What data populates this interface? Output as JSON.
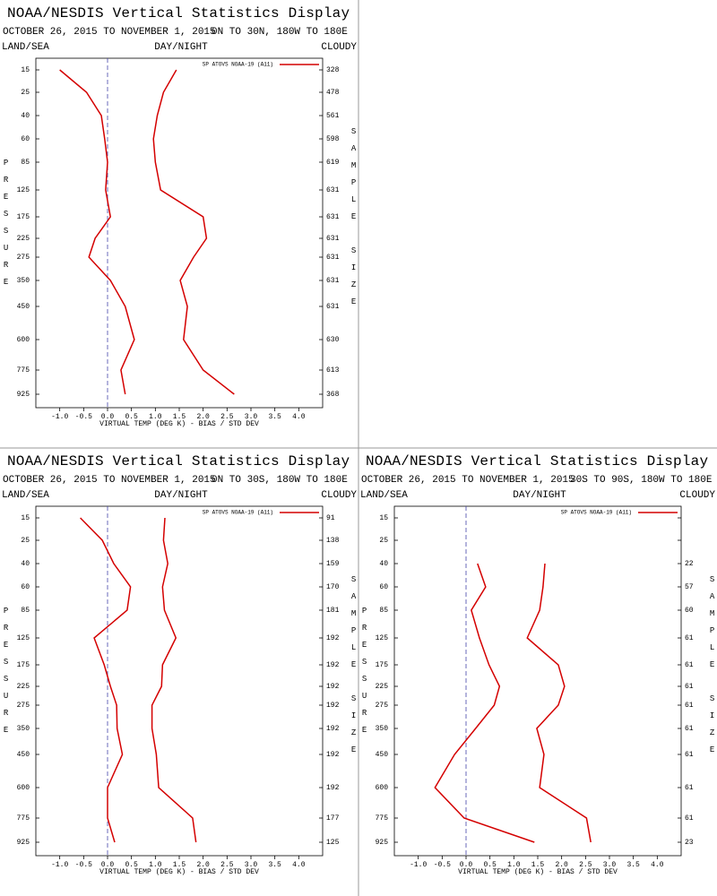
{
  "chart_data": [
    {
      "type": "line",
      "title": "NOAA/NESDIS Vertical Statistics Display",
      "subtitle": "OCTOBER 26, 2015 TO NOVEMBER 1, 2015",
      "region": "0N TO 30N, 180W TO 180E",
      "land_sea": "LAND/SEA",
      "day_night": "DAY/NIGHT",
      "cloudy": "CLOUDY",
      "x_label": "VIRTUAL TEMP (DEG K) - BIAS / STD DEV",
      "y_label": "PRESSURE",
      "y2_label": "SAMPLE SIZE",
      "levels": [
        15,
        25,
        40,
        60,
        85,
        125,
        175,
        225,
        275,
        350,
        450,
        600,
        775,
        925
      ],
      "sample_size": [
        328,
        478,
        561,
        598,
        619,
        631,
        631,
        631,
        631,
        631,
        631,
        630,
        613,
        368
      ],
      "xlim": [
        -1.5,
        4.5
      ],
      "xticks": [
        {
          "value": -1.0,
          "label": "-1.0"
        },
        -0.5,
        {
          "value": 0.0,
          "label": "0.0"
        },
        0.5,
        {
          "value": 1.0,
          "label": "1.0"
        },
        1.5,
        {
          "value": 2.0,
          "label": "2.0"
        },
        2.5,
        {
          "value": 3.0,
          "label": "3.0"
        },
        3.5,
        {
          "value": 4.0,
          "label": "4.0"
        }
      ],
      "series": [
        {
          "name": "SP ATOVS NOAA-19 (A11)",
          "color": "#d40000",
          "values": [
            -1.0,
            -0.44,
            -0.13,
            -0.06,
            0.0,
            -0.04,
            0.06,
            -0.26,
            -0.39,
            0.06,
            0.37,
            0.56,
            0.28,
            0.37
          ],
          "std_dev": [
            1.44,
            1.17,
            1.04,
            0.96,
            1.0,
            1.11,
            2.0,
            2.07,
            1.8,
            1.52,
            1.67,
            1.59,
            2.0,
            2.65
          ]
        }
      ]
    },
    {
      "type": "line",
      "title": "NOAA/NESDIS Vertical Statistics Display",
      "subtitle": "OCTOBER 26, 2015 TO NOVEMBER 1, 2015",
      "region": "0N TO 30S, 180W TO 180E",
      "land_sea": "LAND/SEA",
      "day_night": "DAY/NIGHT",
      "cloudy": "CLOUDY",
      "x_label": "VIRTUAL TEMP (DEG K) - BIAS / STD DEV",
      "y_label": "PRESSURE",
      "y2_label": "SAMPLE SIZE",
      "levels": [
        15,
        25,
        40,
        60,
        85,
        125,
        175,
        225,
        275,
        350,
        450,
        600,
        775,
        925
      ],
      "sample_size": [
        91,
        138,
        159,
        170,
        181,
        192,
        192,
        192,
        192,
        192,
        192,
        192,
        177,
        125
      ],
      "xlim": [
        -1.5,
        4.5
      ],
      "xticks": [
        {
          "value": -1.0,
          "label": "-1.0"
        },
        -0.5,
        {
          "value": 0.0,
          "label": "0.0"
        },
        0.5,
        {
          "value": 1.0,
          "label": "1.0"
        },
        1.5,
        {
          "value": 2.0,
          "label": "2.0"
        },
        2.5,
        {
          "value": 3.0,
          "label": "3.0"
        },
        3.5,
        {
          "value": 4.0,
          "label": "4.0"
        }
      ],
      "series": [
        {
          "name": "SP ATOVS NOAA-19 (A11)",
          "color": "#d40000",
          "values": [
            -0.57,
            -0.11,
            0.13,
            0.48,
            0.41,
            -0.28,
            -0.07,
            0.06,
            0.19,
            0.2,
            0.31,
            0.0,
            0.0,
            0.15
          ],
          "std_dev": [
            1.2,
            1.17,
            1.26,
            1.15,
            1.19,
            1.43,
            1.15,
            1.13,
            0.93,
            0.93,
            1.02,
            1.07,
            1.78,
            1.85
          ]
        }
      ]
    },
    {
      "type": "line",
      "title": "NOAA/NESDIS Vertical Statistics Display",
      "subtitle": "OCTOBER 26, 2015 TO NOVEMBER 1, 2015",
      "region": "30S TO 90S, 180W TO 180E",
      "land_sea": "LAND/SEA",
      "day_night": "DAY/NIGHT",
      "cloudy": "CLOUDY",
      "x_label": "VIRTUAL TEMP (DEG K) - BIAS / STD DEV",
      "y_label": "PRESSURE",
      "y2_label": "SAMPLE SIZE",
      "levels": [
        15,
        25,
        40,
        60,
        85,
        125,
        175,
        225,
        275,
        350,
        450,
        600,
        775,
        925
      ],
      "sample_size": [
        null,
        null,
        22,
        57,
        60,
        61,
        61,
        61,
        61,
        61,
        61,
        61,
        61,
        23
      ],
      "xlim": [
        -1.5,
        4.5
      ],
      "xticks": [
        {
          "value": -1.0,
          "label": "-1.0"
        },
        -0.5,
        {
          "value": 0.0,
          "label": "0.0"
        },
        0.5,
        {
          "value": 1.0,
          "label": "1.0"
        },
        1.5,
        {
          "value": 2.0,
          "label": "2.0"
        },
        2.5,
        {
          "value": 3.0,
          "label": "3.0"
        },
        3.5,
        {
          "value": 4.0,
          "label": "4.0"
        }
      ],
      "series": [
        {
          "name": "SP ATOVS NOAA-19 (A11)",
          "color": "#d40000",
          "values": [
            null,
            null,
            0.24,
            0.41,
            0.11,
            0.28,
            0.48,
            0.7,
            0.59,
            0.2,
            -0.24,
            -0.65,
            -0.04,
            1.43
          ],
          "std_dev": [
            null,
            null,
            1.65,
            1.61,
            1.54,
            1.28,
            1.93,
            2.06,
            1.93,
            1.48,
            1.63,
            1.54,
            2.52,
            2.61
          ]
        }
      ]
    }
  ]
}
